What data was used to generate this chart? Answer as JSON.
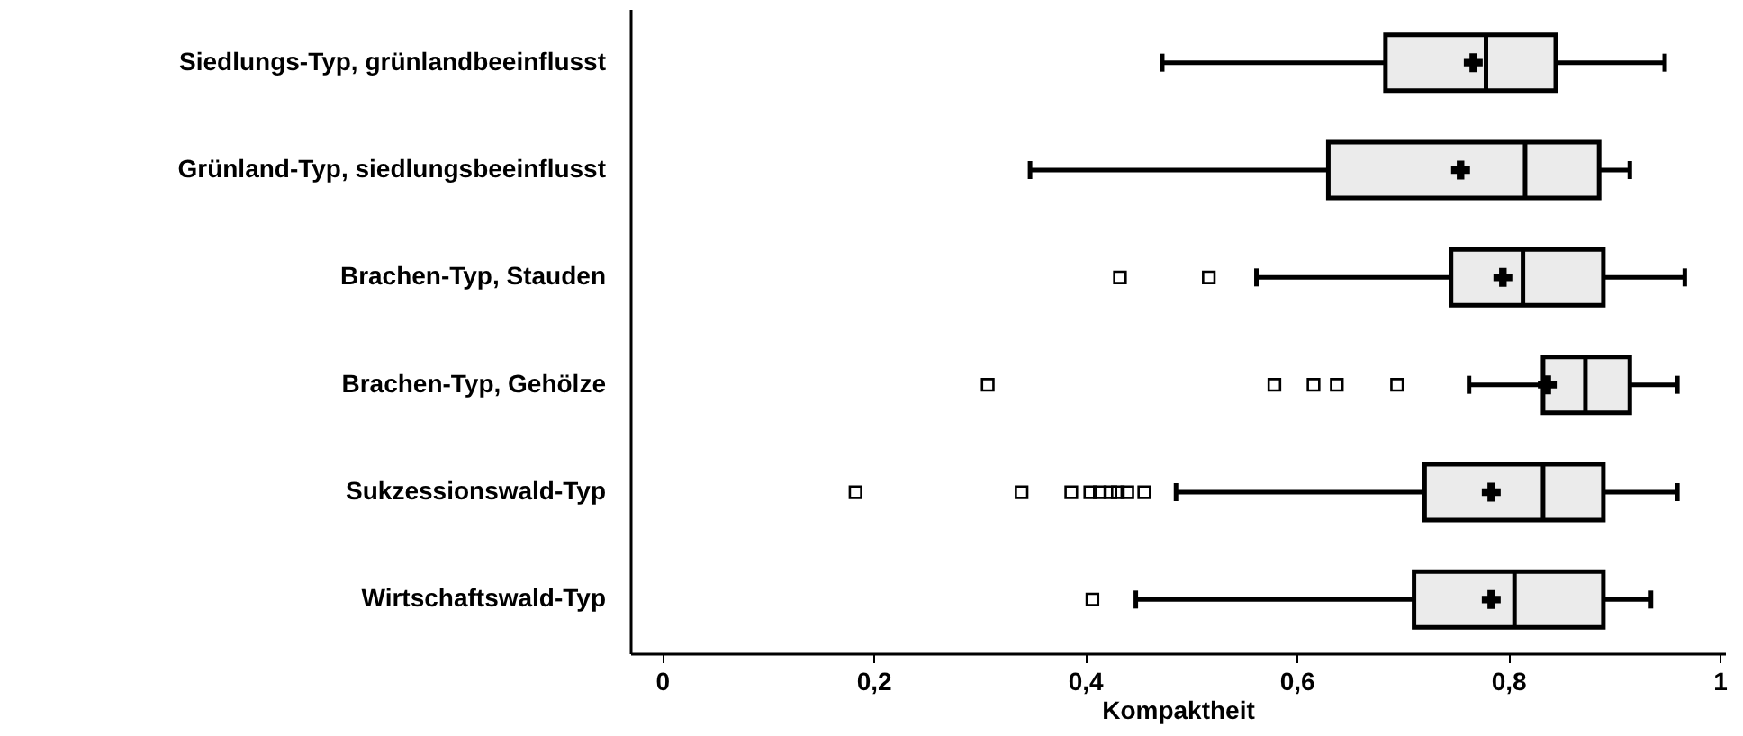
{
  "chart_data": {
    "type": "box",
    "orientation": "horizontal",
    "xlabel": "Kompaktheit",
    "categories": [
      "Siedlungs-Typ, grünlandbeeinflusst",
      "Grünland-Typ, siedlungsbeeinflusst",
      "Brachen-Typ, Stauden",
      "Brachen-Typ, Gehölze",
      "Sukzessionswald-Typ",
      "Wirtschaftswald-Typ"
    ],
    "boxes": [
      {
        "low": 0.473,
        "q1": 0.684,
        "median": 0.779,
        "q3": 0.845,
        "high": 0.948,
        "mean": 0.767
      },
      {
        "low": 0.348,
        "q1": 0.63,
        "median": 0.816,
        "q3": 0.886,
        "high": 0.915,
        "mean": 0.755
      },
      {
        "low": 0.562,
        "q1": 0.746,
        "median": 0.814,
        "q3": 0.89,
        "high": 0.967,
        "mean": 0.795,
        "outliers": [
          0.433,
          0.517
        ]
      },
      {
        "low": 0.763,
        "q1": 0.833,
        "median": 0.873,
        "q3": 0.915,
        "high": 0.96,
        "mean": 0.837,
        "outliers": [
          0.308,
          0.579,
          0.616,
          0.638,
          0.695
        ]
      },
      {
        "low": 0.486,
        "q1": 0.721,
        "median": 0.833,
        "q3": 0.89,
        "high": 0.96,
        "mean": 0.784,
        "outliers": [
          0.183,
          0.34,
          0.387,
          0.405,
          0.414,
          0.424,
          0.431,
          0.44,
          0.456
        ]
      },
      {
        "low": 0.448,
        "q1": 0.711,
        "median": 0.806,
        "q3": 0.89,
        "high": 0.935,
        "mean": 0.784,
        "outliers": [
          0.407
        ]
      }
    ],
    "color": "#ebebeb",
    "xlim": [
      -0.03,
      1.005
    ],
    "xticks": [
      0,
      {
        "value": 0.2,
        "label": "0,2"
      },
      {
        "value": 0.4,
        "label": "0,4"
      },
      {
        "value": 0.6,
        "label": "0,6"
      },
      {
        "value": 0.8,
        "label": "0,8"
      },
      1
    ],
    "marker": "square"
  }
}
